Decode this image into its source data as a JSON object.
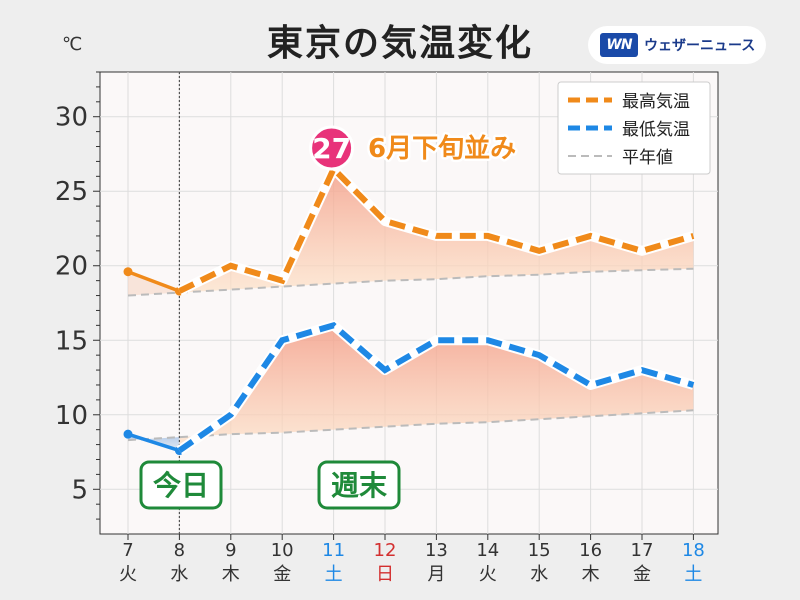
{
  "header": {
    "title": "東京の気温変化",
    "unit": "℃",
    "logo_mark": "WN",
    "logo_text": "ウェザーニュース"
  },
  "chart_data": {
    "type": "line",
    "title": "東京の気温変化",
    "ylabel": "℃",
    "ylim": [
      2,
      33
    ],
    "yticks": [
      5,
      10,
      15,
      20,
      25,
      30
    ],
    "categories": [
      {
        "day": "7",
        "dow": "火",
        "color": "#333333"
      },
      {
        "day": "8",
        "dow": "水",
        "color": "#333333"
      },
      {
        "day": "9",
        "dow": "木",
        "color": "#333333"
      },
      {
        "day": "10",
        "dow": "金",
        "color": "#333333"
      },
      {
        "day": "11",
        "dow": "土",
        "color": "#1e88e5"
      },
      {
        "day": "12",
        "dow": "日",
        "color": "#d32f2f"
      },
      {
        "day": "13",
        "dow": "月",
        "color": "#333333"
      },
      {
        "day": "14",
        "dow": "火",
        "color": "#333333"
      },
      {
        "day": "15",
        "dow": "水",
        "color": "#333333"
      },
      {
        "day": "16",
        "dow": "木",
        "color": "#333333"
      },
      {
        "day": "17",
        "dow": "金",
        "color": "#333333"
      },
      {
        "day": "18",
        "dow": "土",
        "color": "#1e88e5"
      }
    ],
    "series": [
      {
        "name": "最高気温",
        "color": "#f08a1a",
        "observed_points": 2,
        "values": [
          19.6,
          18.3,
          20.0,
          19.0,
          26.5,
          23.0,
          22.0,
          22.0,
          21.0,
          22.0,
          21.0,
          22.0
        ]
      },
      {
        "name": "最低気温",
        "color": "#1e88e5",
        "observed_points": 2,
        "values": [
          8.7,
          7.6,
          10.0,
          15.0,
          16.0,
          13.0,
          15.0,
          15.0,
          14.0,
          12.0,
          13.0,
          12.0
        ]
      }
    ],
    "normals": {
      "name": "平年値",
      "color": "#bbbbbb",
      "high": [
        18.0,
        18.2,
        18.4,
        18.6,
        18.8,
        19.0,
        19.1,
        19.3,
        19.4,
        19.6,
        19.7,
        19.8
      ],
      "low": [
        8.3,
        8.5,
        8.7,
        8.8,
        9.0,
        9.2,
        9.4,
        9.5,
        9.7,
        9.9,
        10.1,
        10.3
      ]
    },
    "today_index": 1,
    "legend_position": "top-right",
    "annotations": {
      "peak_value": "27",
      "peak_index": 4,
      "peak_text": "6月下旬並み",
      "today_label": "今日",
      "weekend_label": "週末"
    }
  }
}
